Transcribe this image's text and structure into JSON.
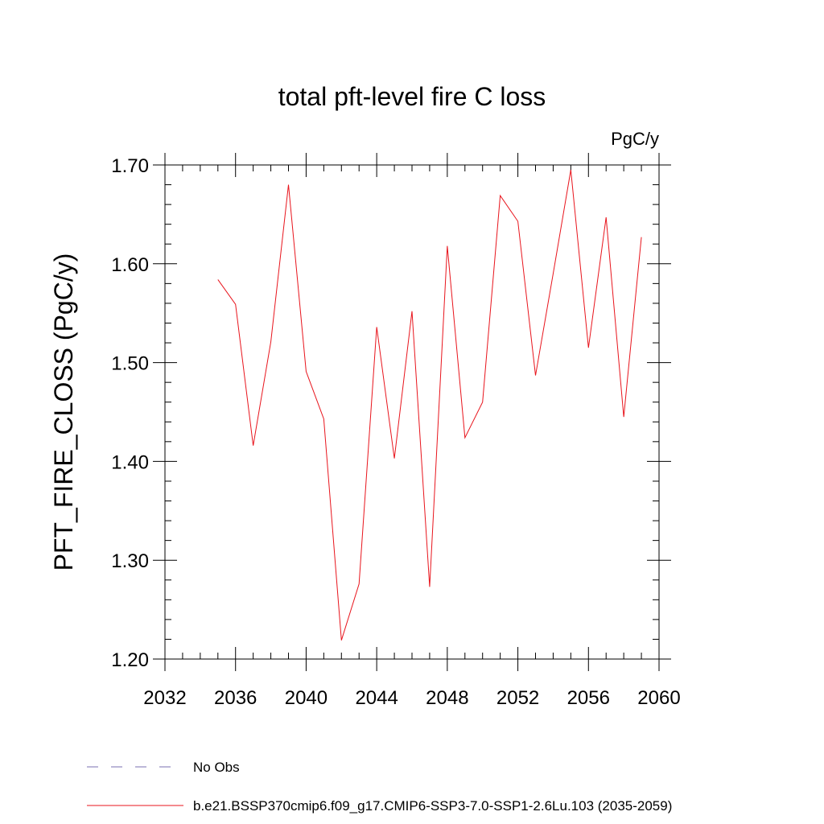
{
  "chart_data": {
    "type": "line",
    "title": "total pft-level fire C loss",
    "units_label": "PgC/y",
    "ylabel": "PFT_FIRE_CLOSS  (PgC/y)",
    "xlabel": "",
    "xlim": [
      2032,
      2060
    ],
    "ylim": [
      1.2,
      1.7
    ],
    "x_ticks": [
      2032,
      2036,
      2040,
      2044,
      2048,
      2052,
      2056,
      2060
    ],
    "x_tick_labels": [
      "2032",
      "2036",
      "2040",
      "2044",
      "2048",
      "2052",
      "2056",
      "2060"
    ],
    "y_ticks": [
      1.2,
      1.3,
      1.4,
      1.5,
      1.6,
      1.7
    ],
    "y_tick_labels": [
      "1.20",
      "1.30",
      "1.40",
      "1.50",
      "1.60",
      "1.70"
    ],
    "grid": false,
    "legend_position": "bottom",
    "series": [
      {
        "name": "No Obs",
        "color": "#7a6fb0",
        "dash": true,
        "x": [],
        "values": []
      },
      {
        "name": "b.e21.BSSP370cmip6.f09_g17.CMIP6-SSP3-7.0-SSP1-2.6Lu.103 (2035-2059)",
        "color": "#e8141c",
        "dash": false,
        "x": [
          2035,
          2036,
          2037,
          2038,
          2039,
          2040,
          2041,
          2042,
          2043,
          2044,
          2045,
          2046,
          2047,
          2048,
          2049,
          2050,
          2051,
          2052,
          2053,
          2054,
          2055,
          2056,
          2057,
          2058,
          2059
        ],
        "values": [
          1.584,
          1.559,
          1.416,
          1.521,
          1.68,
          1.491,
          1.443,
          1.219,
          1.276,
          1.536,
          1.403,
          1.552,
          1.273,
          1.618,
          1.424,
          1.46,
          1.669,
          1.643,
          1.487,
          1.59,
          1.695,
          1.515,
          1.647,
          1.445,
          1.627
        ]
      }
    ]
  }
}
